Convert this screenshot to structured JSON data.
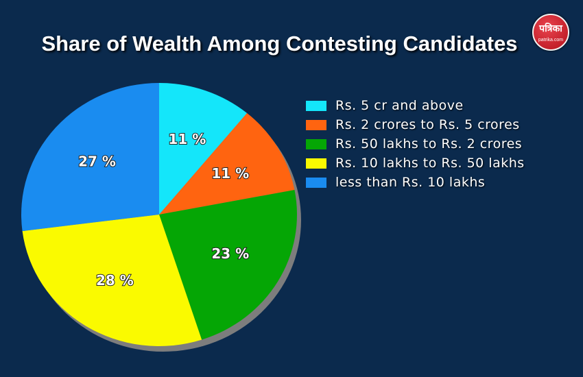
{
  "title": "Share of Wealth Among Contesting Candidates",
  "logo": {
    "mark": "पत्रिका",
    "site": "patrika.com"
  },
  "chart_data": {
    "type": "pie",
    "title": "Share of Wealth Among Contesting Candidates",
    "legend_position": "right",
    "slices": [
      {
        "label": "Rs. 5 cr and above",
        "value": 11,
        "display": "11 %",
        "color": "#14e6fa"
      },
      {
        "label": "Rs. 2 crores to Rs. 5 crores",
        "value": 11,
        "display": "11 %",
        "color": "#ff6410"
      },
      {
        "label": "Rs. 50 lakhs to Rs. 2 crores",
        "value": 23,
        "display": "23 %",
        "color": "#05a605"
      },
      {
        "label": "Rs. 10 lakhs to Rs. 50 lakhs",
        "value": 28,
        "display": "28 %",
        "color": "#fafa00"
      },
      {
        "label": "less than Rs. 10 lakhs",
        "value": 27,
        "display": "27 %",
        "color": "#1a8cf0"
      }
    ]
  }
}
